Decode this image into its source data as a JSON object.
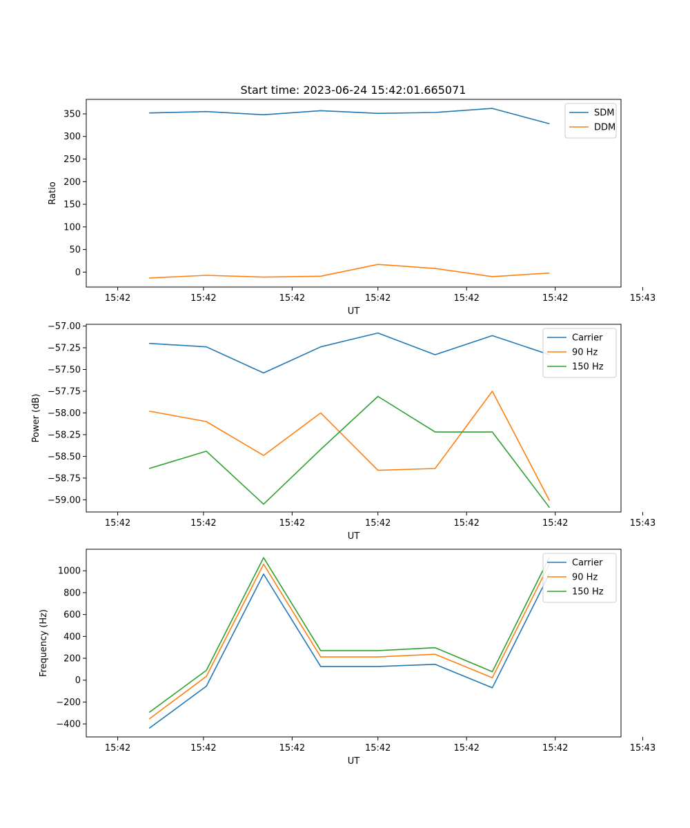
{
  "figure": {
    "title": "Start time: 2023-06-24 15:42:01.665071"
  },
  "colors": {
    "blue": "#1f77b4",
    "orange": "#ff7f0e",
    "green": "#2ca02c"
  },
  "chart_data": [
    {
      "type": "line",
      "id": "ratio",
      "title": "Start time: 2023-06-24 15:42:01.665071",
      "xlabel": "UT",
      "ylabel": "Ratio",
      "x_tick_labels": [
        "15:42",
        "15:42",
        "15:42",
        "15:42",
        "15:42",
        "15:42",
        "15:43"
      ],
      "xlim": [
        0,
        8.7
      ],
      "x": [
        0,
        1,
        2,
        3,
        4,
        5,
        6,
        7
      ],
      "ylim": [
        -33,
        382
      ],
      "yticks": [
        0,
        50,
        100,
        150,
        200,
        250,
        300,
        350
      ],
      "legend": "top-right",
      "series": [
        {
          "name": "SDM",
          "color": "#1f77b4",
          "values": [
            352,
            355,
            348,
            357,
            351,
            353,
            362,
            328
          ]
        },
        {
          "name": "DDM",
          "color": "#ff7f0e",
          "values": [
            -13,
            -7,
            -11,
            -9,
            17,
            8,
            -10,
            -2
          ]
        }
      ]
    },
    {
      "type": "line",
      "id": "power",
      "title": "",
      "xlabel": "UT",
      "ylabel": "Power (dB)",
      "x_tick_labels": [
        "15:42",
        "15:42",
        "15:42",
        "15:42",
        "15:42",
        "15:42",
        "15:43"
      ],
      "xlim": [
        0,
        8.7
      ],
      "x": [
        0,
        1,
        2,
        3,
        4,
        5,
        6,
        7
      ],
      "ylim": [
        -59.14,
        -56.98
      ],
      "yticks": [
        -57.0,
        -57.25,
        -57.5,
        -57.75,
        -58.0,
        -58.25,
        -58.5,
        -58.75,
        -59.0
      ],
      "ytick_labels": [
        "−57.00",
        "−57.25",
        "−57.50",
        "−57.75",
        "−58.00",
        "−58.25",
        "−58.50",
        "−58.75",
        "−59.00"
      ],
      "legend": "top-right",
      "series": [
        {
          "name": "Carrier",
          "color": "#1f77b4",
          "values": [
            -57.2,
            -57.24,
            -57.54,
            -57.24,
            -57.08,
            -57.33,
            -57.11,
            -57.33
          ]
        },
        {
          "name": "90 Hz",
          "color": "#ff7f0e",
          "values": [
            -57.98,
            -58.1,
            -58.49,
            -58.0,
            -58.66,
            -58.64,
            -57.75,
            -59.01
          ]
        },
        {
          "name": "150 Hz",
          "color": "#2ca02c",
          "values": [
            -58.64,
            -58.44,
            -59.05,
            -58.42,
            -57.81,
            -58.22,
            -58.22,
            -59.09
          ]
        }
      ]
    },
    {
      "type": "line",
      "id": "frequency",
      "title": "",
      "xlabel": "UT",
      "ylabel": "Frequency (Hz)",
      "x_tick_labels": [
        "15:42",
        "15:42",
        "15:42",
        "15:42",
        "15:42",
        "15:42",
        "15:43"
      ],
      "xlim": [
        0,
        8.7
      ],
      "x": [
        0,
        1,
        2,
        3,
        4,
        5,
        6,
        7
      ],
      "ylim": [
        -519,
        1197
      ],
      "yticks": [
        -400,
        -200,
        0,
        200,
        400,
        600,
        800,
        1000
      ],
      "ytick_labels": [
        "−400",
        "−200",
        "0",
        "200",
        "400",
        "600",
        "800",
        "1000"
      ],
      "legend": "top-right",
      "series": [
        {
          "name": "Carrier",
          "color": "#1f77b4",
          "values": [
            -440,
            -55,
            970,
            125,
            125,
            145,
            -70,
            975
          ]
        },
        {
          "name": "90 Hz",
          "color": "#ff7f0e",
          "values": [
            -355,
            35,
            1060,
            212,
            212,
            237,
            22,
            1065
          ]
        },
        {
          "name": "150 Hz",
          "color": "#2ca02c",
          "values": [
            -295,
            90,
            1120,
            270,
            270,
            297,
            77,
            1125
          ]
        }
      ]
    }
  ]
}
